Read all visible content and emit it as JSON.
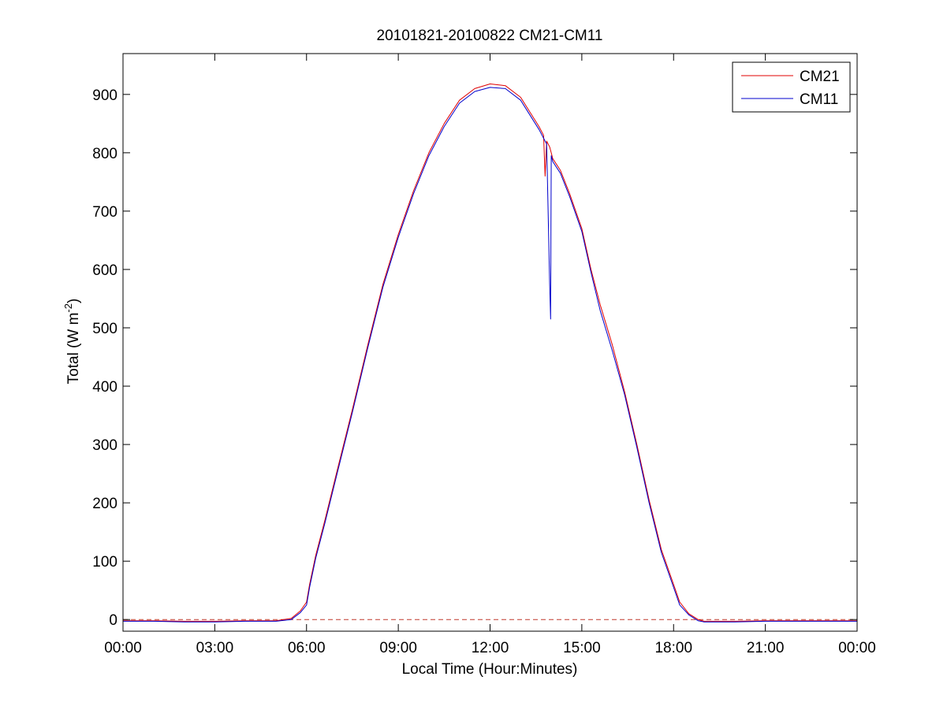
{
  "chart_data": {
    "type": "line",
    "title": "20101821-20100822 CM21-CM11",
    "xlabel": "Local Time (Hour:Minutes)",
    "ylabel": {
      "prefix": "Total (W m",
      "superscript": "-2",
      "suffix": ")"
    },
    "xlim": [
      0,
      24
    ],
    "ylim": [
      -20,
      970
    ],
    "x_tick_values": [
      0,
      3,
      6,
      9,
      12,
      15,
      18,
      21,
      24
    ],
    "x_ticks": [
      "00:00",
      "03:00",
      "06:00",
      "09:00",
      "12:00",
      "15:00",
      "18:00",
      "21:00",
      "00:00"
    ],
    "y_ticks": [
      0,
      100,
      200,
      300,
      400,
      500,
      600,
      700,
      800,
      900
    ],
    "grid": false,
    "legend_position": "top-right",
    "zero_reference_line": {
      "y": 0,
      "style": "dashed",
      "color": "#c0392b"
    },
    "x_units": "hours",
    "series": [
      {
        "name": "CM21",
        "color": "#e00000",
        "x": [
          0,
          1,
          2,
          3,
          4,
          5,
          5.5,
          5.8,
          6.0,
          6.1,
          6.3,
          6.6,
          7.0,
          7.5,
          8.0,
          8.5,
          9.0,
          9.5,
          10.0,
          10.5,
          11.0,
          11.5,
          12.0,
          12.5,
          13.0,
          13.3,
          13.6,
          13.75,
          13.8,
          13.85,
          13.95,
          14.0,
          14.05,
          14.3,
          14.6,
          15.0,
          15.3,
          15.6,
          16.0,
          16.4,
          16.8,
          17.2,
          17.6,
          18.0,
          18.2,
          18.5,
          18.8,
          19.0,
          20,
          21,
          22,
          23,
          24
        ],
        "y": [
          -2,
          -2,
          -3,
          -3,
          -2,
          -2,
          2,
          15,
          30,
          60,
          110,
          170,
          255,
          360,
          470,
          575,
          660,
          735,
          800,
          850,
          890,
          910,
          918,
          915,
          895,
          870,
          845,
          830,
          760,
          820,
          810,
          800,
          790,
          770,
          730,
          670,
          600,
          540,
          470,
          390,
          300,
          205,
          120,
          60,
          30,
          10,
          0,
          -3,
          -3,
          -2,
          -2,
          -2,
          -2
        ]
      },
      {
        "name": "CM11",
        "color": "#0000cc",
        "x": [
          0,
          1,
          2,
          3,
          4,
          5,
          5.5,
          5.8,
          6.0,
          6.1,
          6.3,
          6.6,
          7.0,
          7.5,
          8.0,
          8.5,
          9.0,
          9.5,
          10.0,
          10.5,
          11.0,
          11.5,
          12.0,
          12.5,
          13.0,
          13.3,
          13.6,
          13.75,
          13.8,
          13.85,
          13.95,
          13.98,
          14.0,
          14.05,
          14.3,
          14.6,
          15.0,
          15.3,
          15.6,
          16.0,
          16.4,
          16.8,
          17.2,
          17.6,
          18.0,
          18.2,
          18.5,
          18.8,
          19.0,
          20,
          21,
          22,
          23,
          24
        ],
        "y": [
          -3,
          -3,
          -4,
          -4,
          -3,
          -3,
          0,
          12,
          25,
          55,
          105,
          165,
          250,
          355,
          465,
          570,
          655,
          730,
          795,
          845,
          885,
          905,
          912,
          910,
          890,
          865,
          840,
          825,
          820,
          815,
          575,
          515,
          795,
          785,
          765,
          725,
          665,
          595,
          530,
          460,
          385,
          295,
          200,
          115,
          55,
          25,
          8,
          -2,
          -4,
          -4,
          -3,
          -3,
          -3,
          -3
        ]
      }
    ]
  }
}
